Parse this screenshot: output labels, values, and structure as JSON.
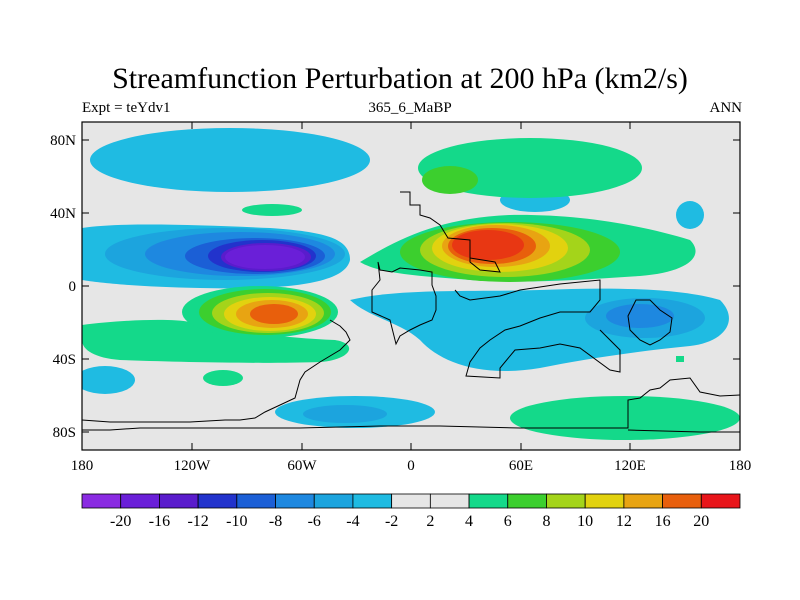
{
  "title": "Streamfunction Perturbation at 200 hPa (km2/s)",
  "left_label": "Expt = teYdv1",
  "center_label": "365_6_MaBP",
  "right_label": "ANN",
  "y_ticks": [
    "80N",
    "40N",
    "0",
    "40S",
    "80S"
  ],
  "x_ticks": [
    "180",
    "120W",
    "60W",
    "0",
    "60E",
    "120E",
    "180"
  ],
  "colorbar": {
    "labels": [
      "-20",
      "-16",
      "-12",
      "-10",
      "-8",
      "-6",
      "-4",
      "-2",
      "2",
      "4",
      "6",
      "8",
      "10",
      "12",
      "16",
      "20"
    ],
    "colors": [
      "#8a2be2",
      "#6a1fd8",
      "#5a1ccc",
      "#2233cc",
      "#1b5fd6",
      "#1e88e0",
      "#1ca4de",
      "#1fbbe2",
      "#e6e6e6",
      "#14d98a",
      "#3ccf2e",
      "#a4d41a",
      "#e2d20f",
      "#e8a412",
      "#e85f0c",
      "#e8151a"
    ]
  },
  "background_color": "#e6e6e6"
}
